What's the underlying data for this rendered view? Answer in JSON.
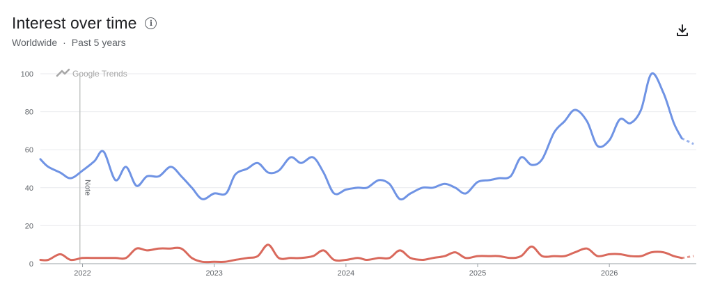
{
  "header": {
    "title": "Interest over time",
    "region": "Worldwide",
    "separator": "·",
    "period": "Past 5 years"
  },
  "icons": {
    "info": "info-icon",
    "download": "download-icon",
    "trends_logo": "google-trends-logo-icon"
  },
  "watermark": "Google Trends",
  "note_label": "Note",
  "note_x": 2021.98,
  "chart_data": {
    "type": "line",
    "xlim": [
      2021.68,
      2026.66
    ],
    "ylim": [
      0,
      100
    ],
    "y_ticks": [
      0,
      20,
      40,
      60,
      80,
      100
    ],
    "x_ticks": [
      {
        "label": "2022",
        "value": 2022
      },
      {
        "label": "2023",
        "value": 2023
      },
      {
        "label": "2024",
        "value": 2024
      },
      {
        "label": "2025",
        "value": 2025
      },
      {
        "label": "2026",
        "value": 2026
      }
    ],
    "grid": true,
    "partial_from_x": 2026.55,
    "series": [
      {
        "color": "#6f93e4",
        "points": [
          [
            2021.68,
            55
          ],
          [
            2021.74,
            51
          ],
          [
            2021.83,
            48
          ],
          [
            2021.91,
            45
          ],
          [
            2022.0,
            49
          ],
          [
            2022.09,
            54
          ],
          [
            2022.16,
            59
          ],
          [
            2022.25,
            44
          ],
          [
            2022.33,
            51
          ],
          [
            2022.41,
            41
          ],
          [
            2022.49,
            46
          ],
          [
            2022.58,
            46
          ],
          [
            2022.67,
            51
          ],
          [
            2022.75,
            46
          ],
          [
            2022.83,
            40
          ],
          [
            2022.91,
            34
          ],
          [
            2023.0,
            37
          ],
          [
            2023.09,
            37
          ],
          [
            2023.16,
            47
          ],
          [
            2023.25,
            50
          ],
          [
            2023.33,
            53
          ],
          [
            2023.41,
            48
          ],
          [
            2023.49,
            49
          ],
          [
            2023.58,
            56
          ],
          [
            2023.66,
            53
          ],
          [
            2023.75,
            56
          ],
          [
            2023.83,
            48
          ],
          [
            2023.91,
            37
          ],
          [
            2024.0,
            39
          ],
          [
            2024.09,
            40
          ],
          [
            2024.16,
            40
          ],
          [
            2024.25,
            44
          ],
          [
            2024.33,
            42
          ],
          [
            2024.41,
            34
          ],
          [
            2024.49,
            37
          ],
          [
            2024.58,
            40
          ],
          [
            2024.66,
            40
          ],
          [
            2024.75,
            42
          ],
          [
            2024.83,
            40
          ],
          [
            2024.91,
            37
          ],
          [
            2025.0,
            43
          ],
          [
            2025.09,
            44
          ],
          [
            2025.16,
            45
          ],
          [
            2025.25,
            46
          ],
          [
            2025.33,
            56
          ],
          [
            2025.41,
            52
          ],
          [
            2025.49,
            55
          ],
          [
            2025.58,
            69
          ],
          [
            2025.66,
            75
          ],
          [
            2025.74,
            81
          ],
          [
            2025.83,
            75
          ],
          [
            2025.91,
            62
          ],
          [
            2026.0,
            65
          ],
          [
            2026.08,
            76
          ],
          [
            2026.16,
            74
          ],
          [
            2026.24,
            81
          ],
          [
            2026.32,
            100
          ],
          [
            2026.41,
            90
          ],
          [
            2026.49,
            74
          ],
          [
            2026.55,
            66
          ],
          [
            2026.64,
            63
          ]
        ]
      },
      {
        "color": "#d9695c",
        "points": [
          [
            2021.68,
            2
          ],
          [
            2021.74,
            2
          ],
          [
            2021.83,
            5
          ],
          [
            2021.91,
            2
          ],
          [
            2022.0,
            3
          ],
          [
            2022.09,
            3
          ],
          [
            2022.16,
            3
          ],
          [
            2022.25,
            3
          ],
          [
            2022.33,
            3
          ],
          [
            2022.41,
            8
          ],
          [
            2022.49,
            7
          ],
          [
            2022.58,
            8
          ],
          [
            2022.66,
            8
          ],
          [
            2022.75,
            8
          ],
          [
            2022.83,
            3
          ],
          [
            2022.91,
            1
          ],
          [
            2023.0,
            1
          ],
          [
            2023.08,
            1
          ],
          [
            2023.16,
            2
          ],
          [
            2023.25,
            3
          ],
          [
            2023.33,
            4
          ],
          [
            2023.41,
            10
          ],
          [
            2023.49,
            3
          ],
          [
            2023.58,
            3
          ],
          [
            2023.66,
            3
          ],
          [
            2023.75,
            4
          ],
          [
            2023.83,
            7
          ],
          [
            2023.91,
            2
          ],
          [
            2024.0,
            2
          ],
          [
            2024.09,
            3
          ],
          [
            2024.16,
            2
          ],
          [
            2024.25,
            3
          ],
          [
            2024.33,
            3
          ],
          [
            2024.41,
            7
          ],
          [
            2024.49,
            3
          ],
          [
            2024.58,
            2
          ],
          [
            2024.66,
            3
          ],
          [
            2024.75,
            4
          ],
          [
            2024.83,
            6
          ],
          [
            2024.91,
            3
          ],
          [
            2025.0,
            4
          ],
          [
            2025.09,
            4
          ],
          [
            2025.16,
            4
          ],
          [
            2025.25,
            3
          ],
          [
            2025.33,
            4
          ],
          [
            2025.41,
            9
          ],
          [
            2025.49,
            4
          ],
          [
            2025.58,
            4
          ],
          [
            2025.66,
            4
          ],
          [
            2025.74,
            6
          ],
          [
            2025.83,
            8
          ],
          [
            2025.91,
            4
          ],
          [
            2026.0,
            5
          ],
          [
            2026.08,
            5
          ],
          [
            2026.16,
            4
          ],
          [
            2026.24,
            4
          ],
          [
            2026.32,
            6
          ],
          [
            2026.41,
            6
          ],
          [
            2026.49,
            4
          ],
          [
            2026.55,
            3
          ],
          [
            2026.64,
            4
          ]
        ]
      }
    ]
  }
}
